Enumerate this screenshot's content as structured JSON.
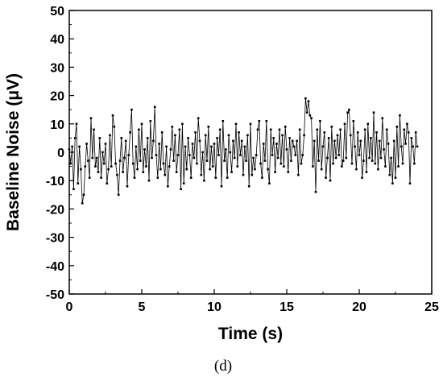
{
  "caption": "(d)",
  "chart_data": {
    "type": "line",
    "xlabel": "Time (s)",
    "ylabel": "Baseline Noise (μV)",
    "xlim": [
      0,
      25
    ],
    "ylim": [
      -50,
      50
    ],
    "x_ticks": [
      0,
      5,
      10,
      15,
      20,
      25
    ],
    "y_ticks": [
      -50,
      -40,
      -30,
      -20,
      -10,
      0,
      10,
      20,
      30,
      40,
      50
    ],
    "x_tick_labels": [
      "0",
      "5",
      "10",
      "15",
      "20",
      "25"
    ],
    "y_tick_labels": [
      "-50",
      "-40",
      "-30",
      "-20",
      "-10",
      "0",
      "10",
      "20",
      "30",
      "40",
      "50"
    ],
    "grid": false,
    "legend": "none",
    "marker": "square",
    "line_color": "#000000",
    "series": [
      {
        "dt": 0.1,
        "x_start": 0,
        "values": [
          1,
          -4,
          2,
          -13,
          5,
          10,
          -11,
          2,
          -6,
          -18,
          -15,
          -5,
          3,
          -3,
          -9,
          12,
          -2,
          8,
          -5,
          -2,
          -7,
          5,
          -9,
          0,
          -4,
          3,
          -11,
          -6,
          6,
          -5,
          13,
          9,
          -4,
          -8,
          -15,
          -3,
          5,
          -7,
          -2,
          4,
          -12,
          -1,
          7,
          15,
          -4,
          -9,
          2,
          -6,
          8,
          -3,
          10,
          -7,
          1,
          -5,
          5,
          -10,
          11,
          -2,
          4,
          16,
          -1,
          -9,
          3,
          -6,
          7,
          -4,
          -8,
          2,
          -12,
          -5,
          1,
          9,
          -3,
          6,
          -7,
          -1,
          8,
          -13,
          10,
          -11,
          2,
          -6,
          5,
          -1,
          -9,
          3,
          -2,
          7,
          -4,
          12,
          4,
          -8,
          0,
          -10,
          6,
          -3,
          9,
          -6,
          2,
          -5,
          3,
          -9,
          5,
          -1,
          8,
          -12,
          11,
          -3,
          1,
          -9,
          6,
          0,
          -7,
          4,
          -2,
          10,
          -5,
          7,
          -1,
          4,
          -8,
          2,
          -3,
          6,
          -12,
          10,
          -8,
          -2,
          -6,
          -1,
          8,
          11,
          -4,
          -9,
          3,
          -3,
          11,
          -6,
          -11,
          8,
          -1,
          5,
          -7,
          3,
          -2,
          8,
          -4,
          6,
          -5,
          9,
          1,
          -7,
          5,
          -3,
          4,
          2,
          -1,
          4,
          -8,
          8,
          -4,
          -1,
          6,
          19,
          14,
          18,
          13,
          12,
          -5,
          4,
          -14,
          8,
          -3,
          11,
          -6,
          2,
          7,
          -9,
          -2,
          5,
          -10,
          9,
          -4,
          4,
          -2,
          6,
          -1,
          8,
          -5,
          -3,
          10,
          -2,
          14,
          15,
          6,
          -4,
          11,
          2,
          -6,
          7,
          -1,
          4,
          -9,
          -3,
          8,
          -7,
          10,
          -2,
          5,
          -3,
          14,
          -4,
          7,
          -6,
          4,
          -2,
          12,
          1,
          -5,
          8,
          3,
          -8,
          -2,
          -11,
          4,
          -9,
          9,
          -5,
          13,
          2,
          -4,
          8,
          3,
          10,
          7,
          -11,
          5,
          2,
          -4,
          7,
          2
        ]
      }
    ]
  }
}
